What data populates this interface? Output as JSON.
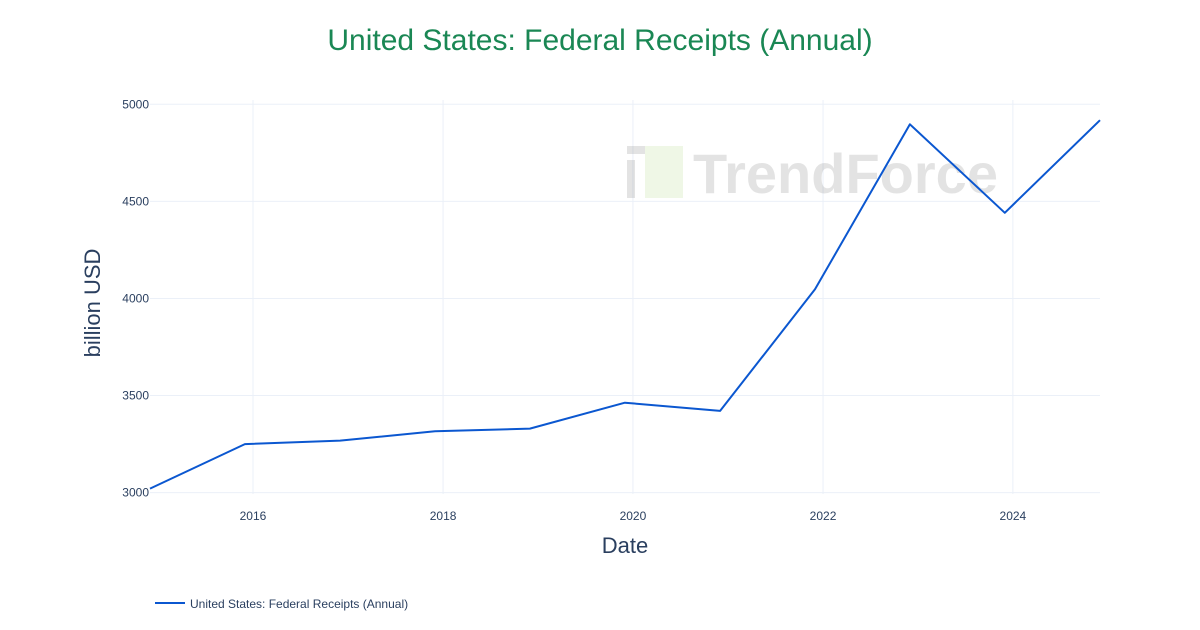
{
  "chart_data": {
    "type": "line",
    "title": "United States: Federal Receipts (Annual)",
    "xlabel": "Date",
    "ylabel": "billion USD",
    "x": [
      "2014-12-01",
      "2015-12-01",
      "2016-12-01",
      "2017-12-01",
      "2018-12-01",
      "2019-12-01",
      "2020-12-01",
      "2021-12-01",
      "2022-12-01",
      "2023-12-01",
      "2024-12-01"
    ],
    "series": [
      {
        "name": "United States: Federal Receipts (Annual)",
        "color": "#0b57d0",
        "values": [
          3021,
          3250,
          3268,
          3316,
          3330,
          3463,
          3421,
          4047,
          4897,
          4441,
          4918
        ]
      }
    ],
    "xticks": [
      "2016",
      "2018",
      "2020",
      "2022",
      "2024"
    ],
    "yticks": [
      3000,
      3500,
      4000,
      4500,
      5000
    ],
    "ylim": [
      2993,
      5022
    ],
    "xlim": [
      "2014-12-01",
      "2024-12-01"
    ],
    "grid": true,
    "legend_placement": "bottom-left",
    "watermark": "TrendForce"
  }
}
